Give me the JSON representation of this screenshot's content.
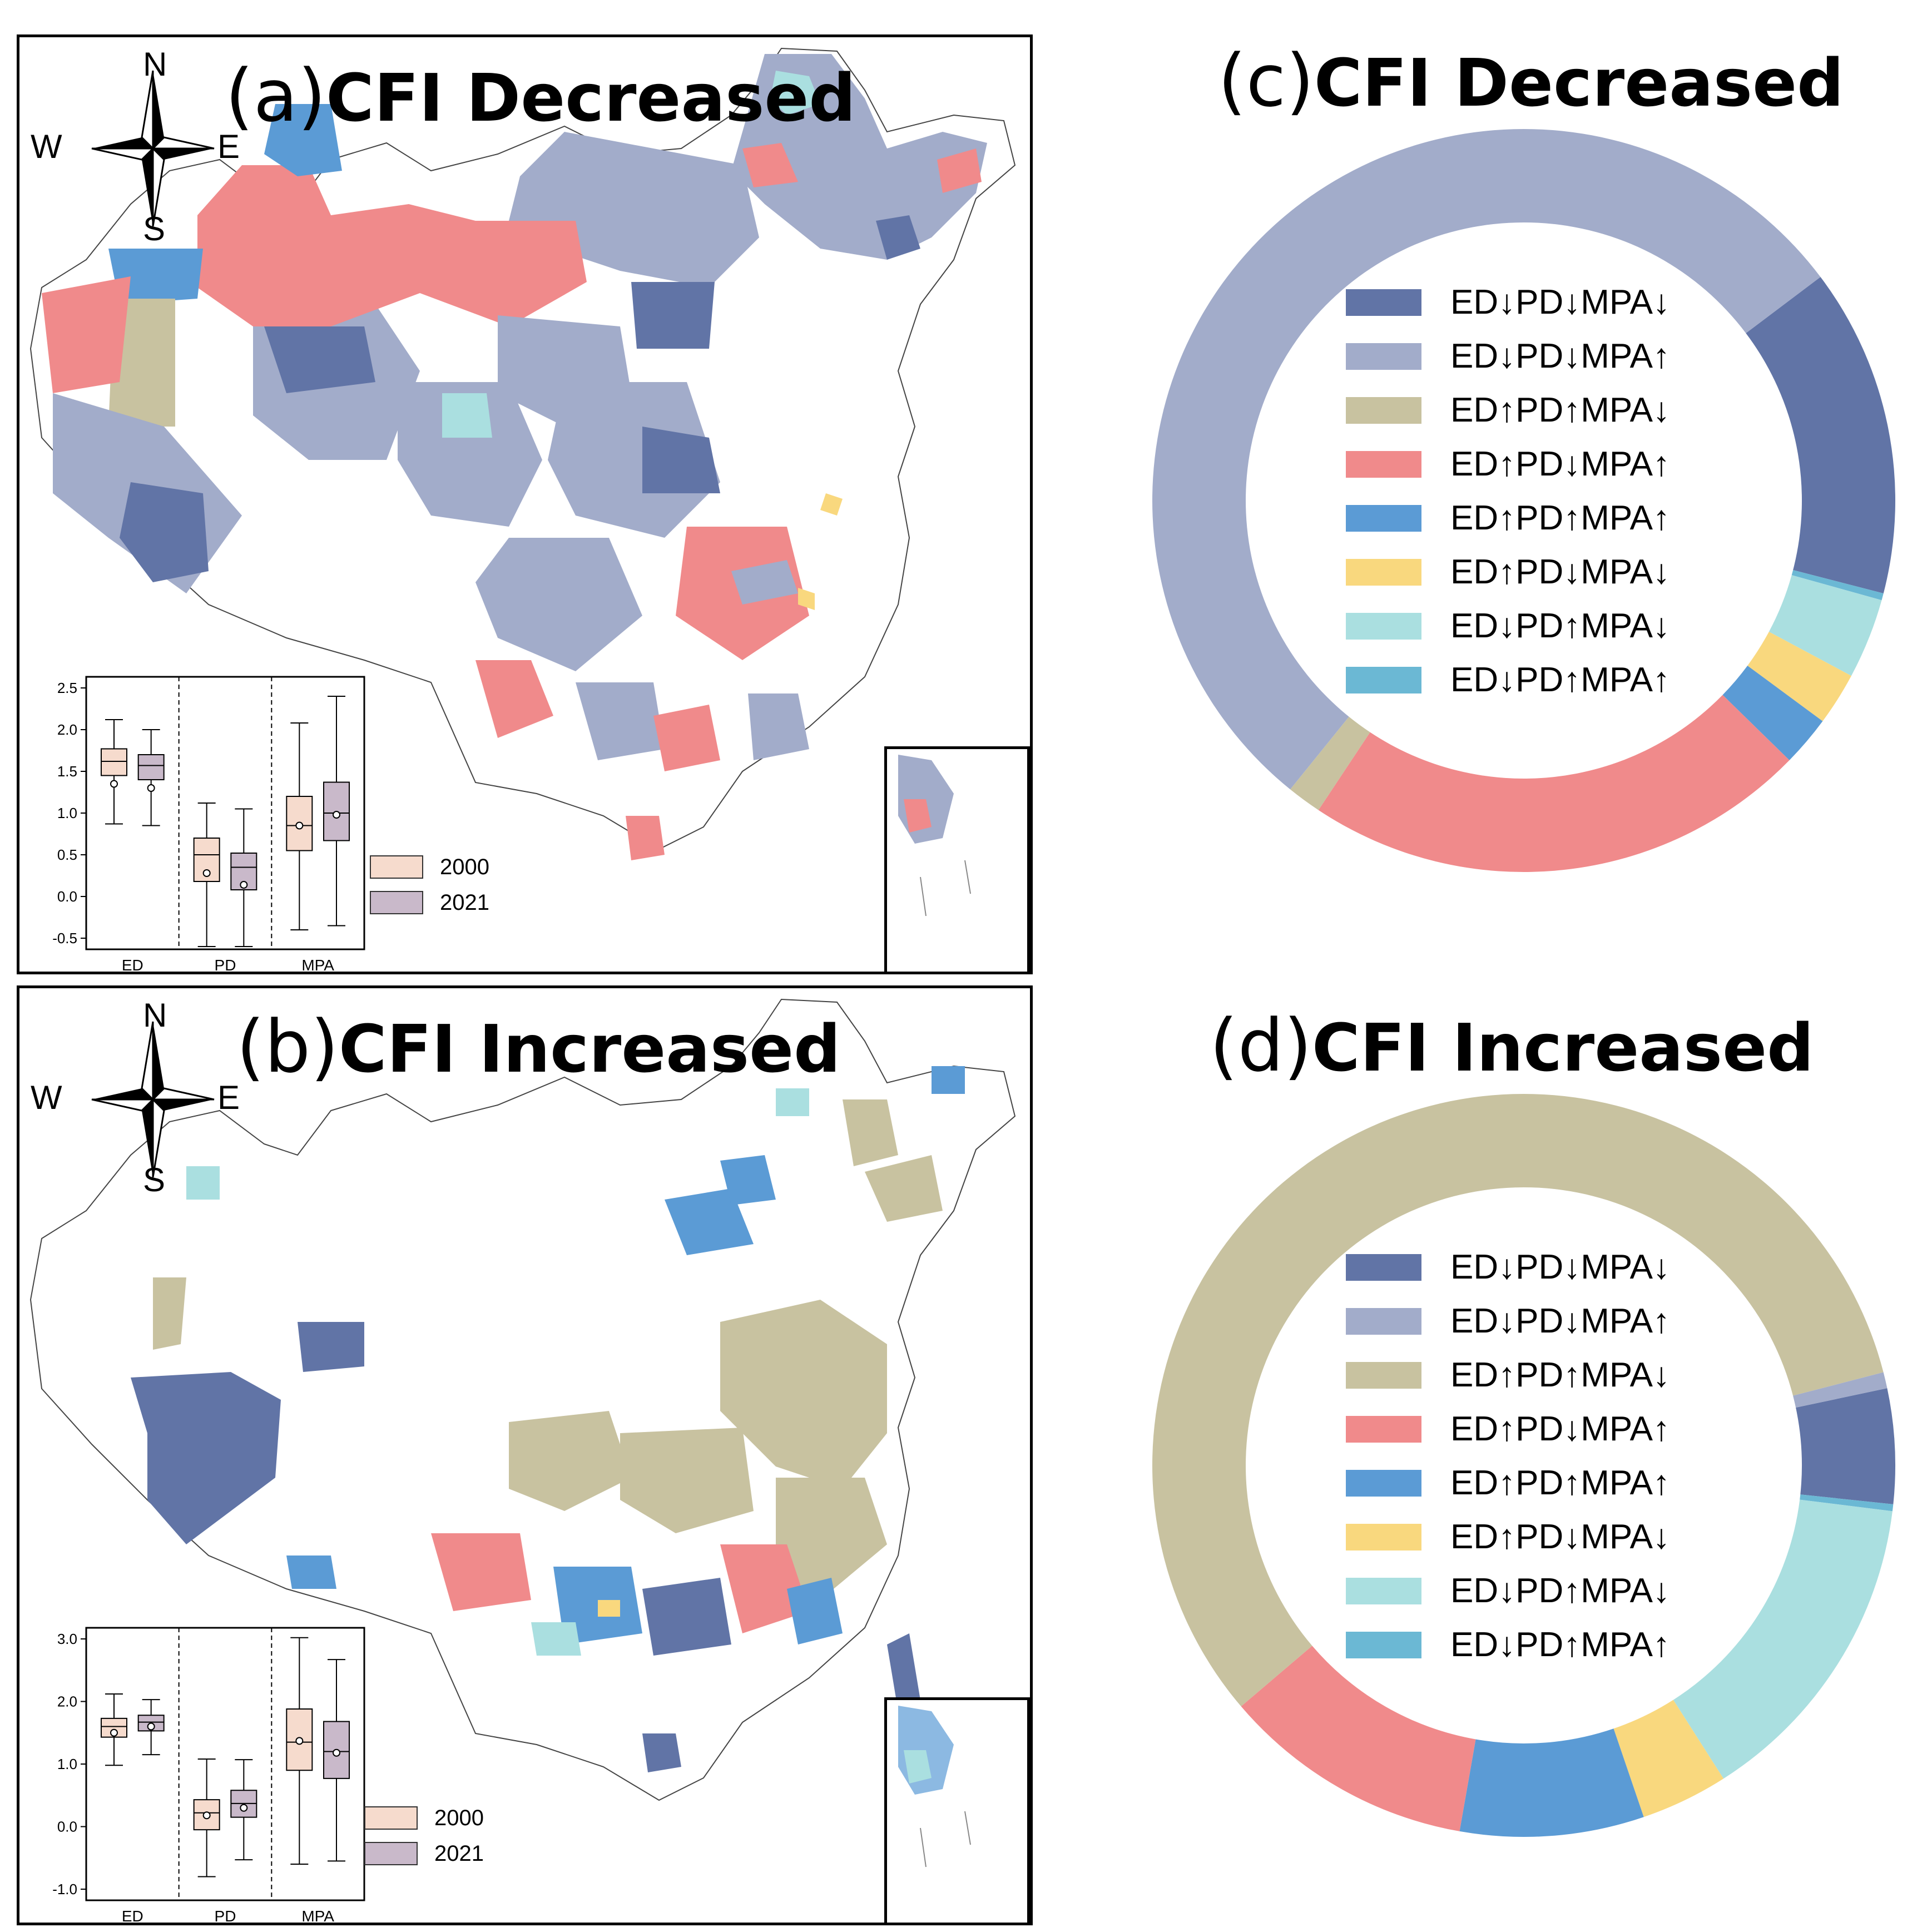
{
  "colors": {
    "ED↓PD↓MPA↓": "#6174a6",
    "ED↓PD↓MPA↑": "#a2acca",
    "ED↑PD↑MPA↓": "#c8c2a0",
    "ED↑PD↓MPA↑": "#f08a8b",
    "ED↑PD↑MPA↑": "#5b9bd5",
    "ED↑PD↓MPA↓": "#f9d87e",
    "ED↓PD↑MPA↓": "#aadfe0",
    "ED↓PD↑MPA↑": "#6bb8d4",
    "box_2000": "#f6dbcd",
    "box_2021": "#c9b9ca"
  },
  "compass": {
    "n": "N",
    "s": "S",
    "w": "W",
    "e": "E"
  },
  "panel_a": {
    "letter": "(a)",
    "title": "CFI Decreased"
  },
  "panel_b": {
    "letter": "(b)",
    "title": "CFI Increased"
  },
  "panel_c": {
    "letter": "(c)",
    "title": "CFI Decreased"
  },
  "panel_d": {
    "letter": "(d)",
    "title": "CFI Increased"
  },
  "legend_labels": [
    "ED↓PD↓MPA↓",
    "ED↓PD↓MPA↑",
    "ED↑PD↑MPA↓",
    "ED↑PD↓MPA↑",
    "ED↑PD↑MPA↑",
    "ED↑PD↓MPA↓",
    "ED↓PD↑MPA↓",
    "ED↓PD↑MPA↑"
  ],
  "box_legend": {
    "y2000": "2000",
    "y2021": "2021"
  },
  "chart_data": [
    {
      "type": "pie",
      "title": "CFI Decreased",
      "donut": true,
      "slices": [
        {
          "label": "ED↓PD↓MPA↓",
          "value": 14.3
        },
        {
          "label": "ED↓PD↑MPA↑",
          "value": 0.3
        },
        {
          "label": "ED↓PD↑MPA↓",
          "value": 3.5
        },
        {
          "label": "ED↑PD↓MPA↓",
          "value": 2.3
        },
        {
          "label": "ED↑PD↑MPA↑",
          "value": 2.2
        },
        {
          "label": "ED↑PD↓MPA↑",
          "value": 22.0
        },
        {
          "label": "ED↑PD↑MPA↓",
          "value": 1.5
        },
        {
          "label": "ED↓PD↓MPA↑",
          "value": 53.9
        }
      ]
    },
    {
      "type": "pie",
      "title": "CFI Increased",
      "donut": true,
      "slices": [
        {
          "label": "ED↓PD↓MPA↓",
          "value": 5.0
        },
        {
          "label": "ED↓PD↑MPA↑",
          "value": 0.3
        },
        {
          "label": "ED↓PD↑MPA↓",
          "value": 14.0
        },
        {
          "label": "ED↑PD↓MPA↓",
          "value": 3.8
        },
        {
          "label": "ED↑PD↑MPA↑",
          "value": 8.0
        },
        {
          "label": "ED↑PD↓MPA↑",
          "value": 11.0
        },
        {
          "label": "ED↑PD↑MPA↓",
          "value": 57.2
        },
        {
          "label": "ED↓PD↓MPA↑",
          "value": 0.7
        }
      ]
    },
    {
      "type": "box",
      "panel": "a",
      "categories": [
        "ED",
        "PD",
        "MPA"
      ],
      "yticks": [
        "2.5",
        "2.0",
        "1.5",
        "1.0",
        "0.5",
        "0.0",
        "-0.5"
      ],
      "ylim": [
        -0.5,
        2.5
      ],
      "series": [
        {
          "name": "2000",
          "boxes": [
            {
              "min": 0.87,
              "q1": 1.45,
              "median": 1.62,
              "q3": 1.77,
              "max": 2.12,
              "mean": 1.35
            },
            {
              "min": -0.6,
              "q1": 0.18,
              "median": 0.5,
              "q3": 0.7,
              "max": 1.12,
              "mean": 0.28
            },
            {
              "min": -0.4,
              "q1": 0.55,
              "median": 0.85,
              "q3": 1.2,
              "max": 2.08,
              "mean": 0.85
            }
          ]
        },
        {
          "name": "2021",
          "boxes": [
            {
              "min": 0.85,
              "q1": 1.4,
              "median": 1.57,
              "q3": 1.7,
              "max": 2.0,
              "mean": 1.3
            },
            {
              "min": -0.6,
              "q1": 0.08,
              "median": 0.35,
              "q3": 0.52,
              "max": 1.05,
              "mean": 0.14
            },
            {
              "min": -0.35,
              "q1": 0.67,
              "median": 1.0,
              "q3": 1.37,
              "max": 2.4,
              "mean": 0.98
            }
          ]
        }
      ]
    },
    {
      "type": "box",
      "panel": "b",
      "categories": [
        "ED",
        "PD",
        "MPA"
      ],
      "yticks": [
        "3.0",
        "2.0",
        "1.0",
        "0.0",
        "-1.0"
      ],
      "ylim": [
        -1.0,
        3.0
      ],
      "series": [
        {
          "name": "2000",
          "boxes": [
            {
              "min": 0.98,
              "q1": 1.43,
              "median": 1.6,
              "q3": 1.73,
              "max": 2.12,
              "mean": 1.5
            },
            {
              "min": -0.8,
              "q1": -0.05,
              "median": 0.22,
              "q3": 0.43,
              "max": 1.08,
              "mean": 0.18
            },
            {
              "min": -0.6,
              "q1": 0.9,
              "median": 1.35,
              "q3": 1.88,
              "max": 3.02,
              "mean": 1.37
            }
          ]
        },
        {
          "name": "2021",
          "boxes": [
            {
              "min": 1.15,
              "q1": 1.53,
              "median": 1.67,
              "q3": 1.78,
              "max": 2.03,
              "mean": 1.6
            },
            {
              "min": -0.53,
              "q1": 0.15,
              "median": 0.37,
              "q3": 0.58,
              "max": 1.07,
              "mean": 0.3
            },
            {
              "min": -0.55,
              "q1": 0.77,
              "median": 1.2,
              "q3": 1.68,
              "max": 2.67,
              "mean": 1.18
            }
          ]
        }
      ]
    }
  ]
}
